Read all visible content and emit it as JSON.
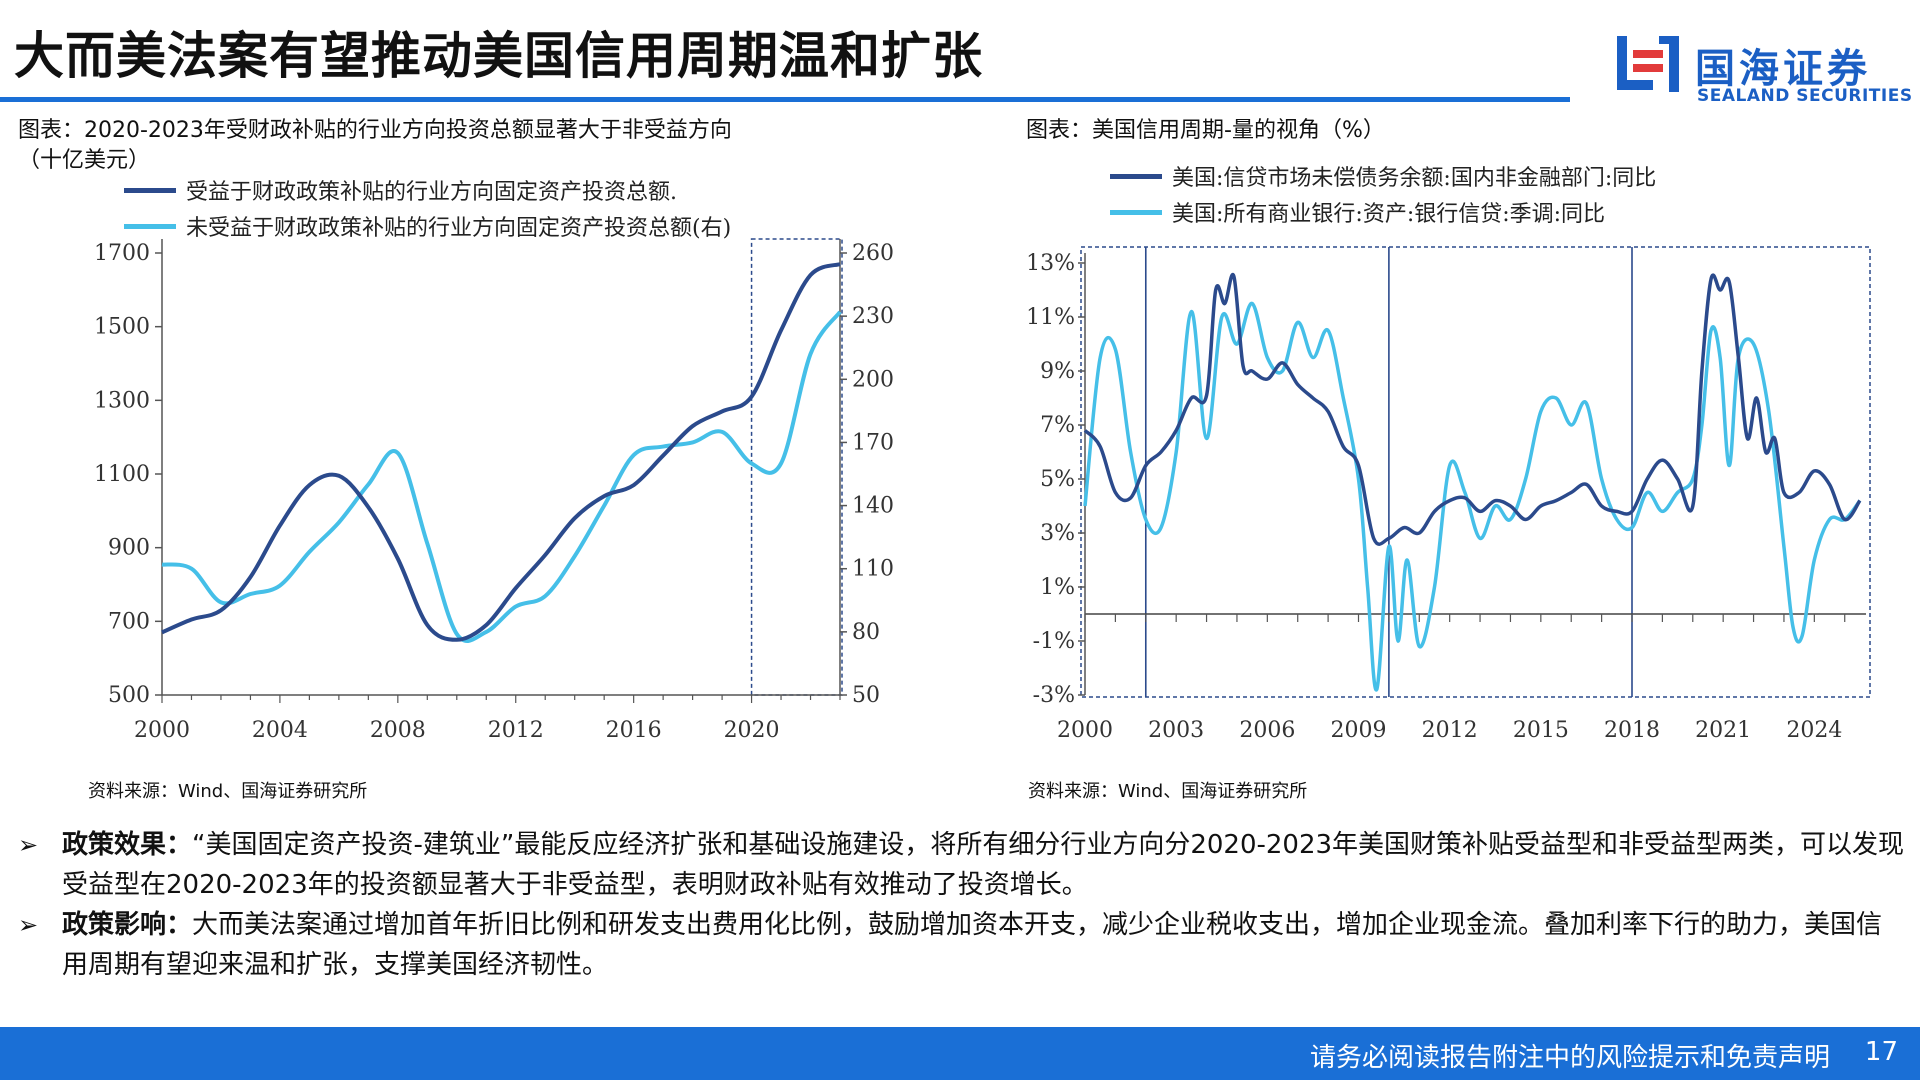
{
  "header": {
    "title": "大而美法案有望推动美国信用周期温和扩张"
  },
  "logo": {
    "cn": "国海证券",
    "en": "SEALAND SECURITIES"
  },
  "left_chart": {
    "caption_line1": "图表：2020-2023年受财政补贴的行业方向投资总额显著大于非受益方向",
    "caption_line2": "（十亿美元）",
    "source": "资料来源：Wind、国海证券研究所"
  },
  "right_chart": {
    "caption": "图表：美国信用周期-量的视角（%）",
    "source": "资料来源：Wind、国海证券研究所"
  },
  "chart_data": [
    {
      "type": "line",
      "x_ticks": [
        "2000",
        "2004",
        "2008",
        "2012",
        "2016",
        "2020"
      ],
      "y_left_ticks": [
        "500",
        "700",
        "900",
        "1100",
        "1300",
        "1500",
        "1700"
      ],
      "y_right_ticks": [
        "50",
        "80",
        "110",
        "140",
        "170",
        "200",
        "230",
        "260"
      ],
      "ylim_left": [
        500,
        1700
      ],
      "ylim_right": [
        50,
        260
      ],
      "xlim": [
        2000,
        2023
      ],
      "highlight_range": [
        2020,
        2023
      ],
      "colors": {
        "series1": "#2b4a8c",
        "series2": "#45bfe8"
      },
      "series": [
        {
          "name": "受益于财政政策补贴的行业方向固定资产投资总额.",
          "axis": "left",
          "x": [
            2000,
            2001,
            2002,
            2003,
            2004,
            2005,
            2006,
            2007,
            2008,
            2009,
            2010,
            2011,
            2012,
            2013,
            2014,
            2015,
            2016,
            2017,
            2018,
            2019,
            2020,
            2021,
            2022,
            2023
          ],
          "values": [
            670,
            705,
            730,
            820,
            960,
            1070,
            1095,
            1010,
            870,
            690,
            650,
            690,
            790,
            880,
            980,
            1040,
            1070,
            1150,
            1230,
            1270,
            1310,
            1490,
            1640,
            1670
          ]
        },
        {
          "name": "未受益于财政政策补贴的行业方向固定资产投资总额(右)",
          "axis": "right",
          "x": [
            2000,
            2001,
            2002,
            2003,
            2004,
            2005,
            2006,
            2007,
            2008,
            2009,
            2010,
            2011,
            2012,
            2013,
            2014,
            2015,
            2016,
            2017,
            2018,
            2019,
            2020,
            2021,
            2022,
            2023
          ],
          "values": [
            112,
            110,
            94,
            98,
            102,
            118,
            132,
            150,
            165,
            122,
            79,
            80,
            92,
            97,
            116,
            140,
            164,
            168,
            170,
            175,
            160,
            160,
            212,
            232
          ]
        }
      ]
    },
    {
      "type": "line",
      "x_ticks": [
        "2000",
        "2003",
        "2006",
        "2009",
        "2012",
        "2015",
        "2018",
        "2021",
        "2024"
      ],
      "y_ticks": [
        "-3%",
        "-1%",
        "1%",
        "3%",
        "5%",
        "7%",
        "9%",
        "11%",
        "13%"
      ],
      "ylim": [
        -3,
        13
      ],
      "xlim": [
        2000,
        2025.7
      ],
      "vertical_markers": [
        2002,
        2010,
        2018
      ],
      "colors": {
        "series1": "#2b4a8c",
        "series2": "#45bfe8"
      },
      "series": [
        {
          "name": "美国:信贷市场未偿债务余额:国内非金融部门:同比",
          "x": [
            2000,
            2000.5,
            2001,
            2001.5,
            2002,
            2002.5,
            2003,
            2003.5,
            2004,
            2004.3,
            2004.6,
            2004.9,
            2005.2,
            2005.5,
            2006,
            2006.5,
            2007,
            2007.5,
            2008,
            2008.5,
            2009,
            2009.5,
            2010,
            2010.5,
            2011,
            2011.5,
            2012,
            2012.5,
            2013,
            2013.5,
            2014,
            2014.5,
            2015,
            2015.5,
            2016,
            2016.5,
            2017,
            2017.5,
            2018,
            2018.5,
            2019,
            2019.5,
            2020,
            2020.3,
            2020.6,
            2020.9,
            2021.2,
            2021.5,
            2021.8,
            2022.1,
            2022.4,
            2022.7,
            2023,
            2023.5,
            2024,
            2024.5,
            2025,
            2025.5
          ],
          "values": [
            6.8,
            6.2,
            4.5,
            4.3,
            5.5,
            6.0,
            6.8,
            8.0,
            8.1,
            12.0,
            11.5,
            12.5,
            9.2,
            9.0,
            8.7,
            9.3,
            8.5,
            8.0,
            7.5,
            6.2,
            5.5,
            2.8,
            2.8,
            3.2,
            3.0,
            3.8,
            4.2,
            4.3,
            3.8,
            4.2,
            4.0,
            3.5,
            4.0,
            4.2,
            4.5,
            4.8,
            4.0,
            3.8,
            3.8,
            5.0,
            5.7,
            5.0,
            4.0,
            9.0,
            12.4,
            12.0,
            12.3,
            9.5,
            6.5,
            8.0,
            6.0,
            6.5,
            4.5,
            4.5,
            5.3,
            4.8,
            3.5,
            4.2
          ]
        },
        {
          "name": "美国:所有商业银行:资产:银行信贷:季调:同比",
          "x": [
            2000,
            2000.5,
            2001,
            2001.5,
            2002,
            2002.5,
            2003,
            2003.5,
            2004,
            2004.5,
            2005,
            2005.5,
            2006,
            2006.5,
            2007,
            2007.5,
            2008,
            2008.5,
            2009,
            2009.3,
            2009.6,
            2010,
            2010.3,
            2010.6,
            2011,
            2011.5,
            2012,
            2012.5,
            2013,
            2013.5,
            2014,
            2014.5,
            2015,
            2015.5,
            2016,
            2016.5,
            2017,
            2017.5,
            2018,
            2018.5,
            2019,
            2019.5,
            2020,
            2020.3,
            2020.6,
            2020.9,
            2021.2,
            2021.5,
            2022,
            2022.5,
            2023,
            2023.3,
            2023.6,
            2024,
            2024.5,
            2025,
            2025.5
          ],
          "values": [
            4.0,
            9.5,
            9.8,
            6.0,
            3.5,
            3.2,
            6.0,
            11.2,
            6.5,
            11.0,
            10.0,
            11.5,
            9.5,
            9.0,
            10.8,
            9.5,
            10.5,
            8.0,
            5.0,
            1.0,
            -2.8,
            2.5,
            -1.0,
            2.0,
            -1.2,
            1.0,
            5.5,
            4.5,
            2.8,
            4.0,
            3.5,
            5.0,
            7.5,
            8.0,
            7.0,
            7.8,
            5.0,
            3.5,
            3.2,
            4.5,
            3.8,
            4.5,
            5.0,
            7.0,
            10.5,
            9.5,
            5.5,
            9.5,
            10.0,
            7.5,
            2.5,
            -0.5,
            -0.8,
            2.0,
            3.5,
            3.5,
            4.2
          ]
        }
      ]
    }
  ],
  "bullets": [
    {
      "label": "政策效果：",
      "text": "“美国固定资产投资-建筑业”最能反应经济扩张和基础设施建设，将所有细分行业方向分2020-2023年美国财策补贴受益型和非受益型两类，可以发现受益型在2020-2023年的投资额显著大于非受益型，表明财政补贴有效推动了投资增长。"
    },
    {
      "label": "政策影响：",
      "text": "大而美法案通过增加首年折旧比例和研发支出费用化比例，鼓励增加资本开支，减少企业税收支出，增加企业现金流。叠加利率下行的助力，美国信用周期有望迎来温和扩张，支撑美国经济韧性。"
    }
  ],
  "footer": {
    "disclaimer": "请务必阅读报告附注中的风险提示和免责声明",
    "page": "17"
  }
}
